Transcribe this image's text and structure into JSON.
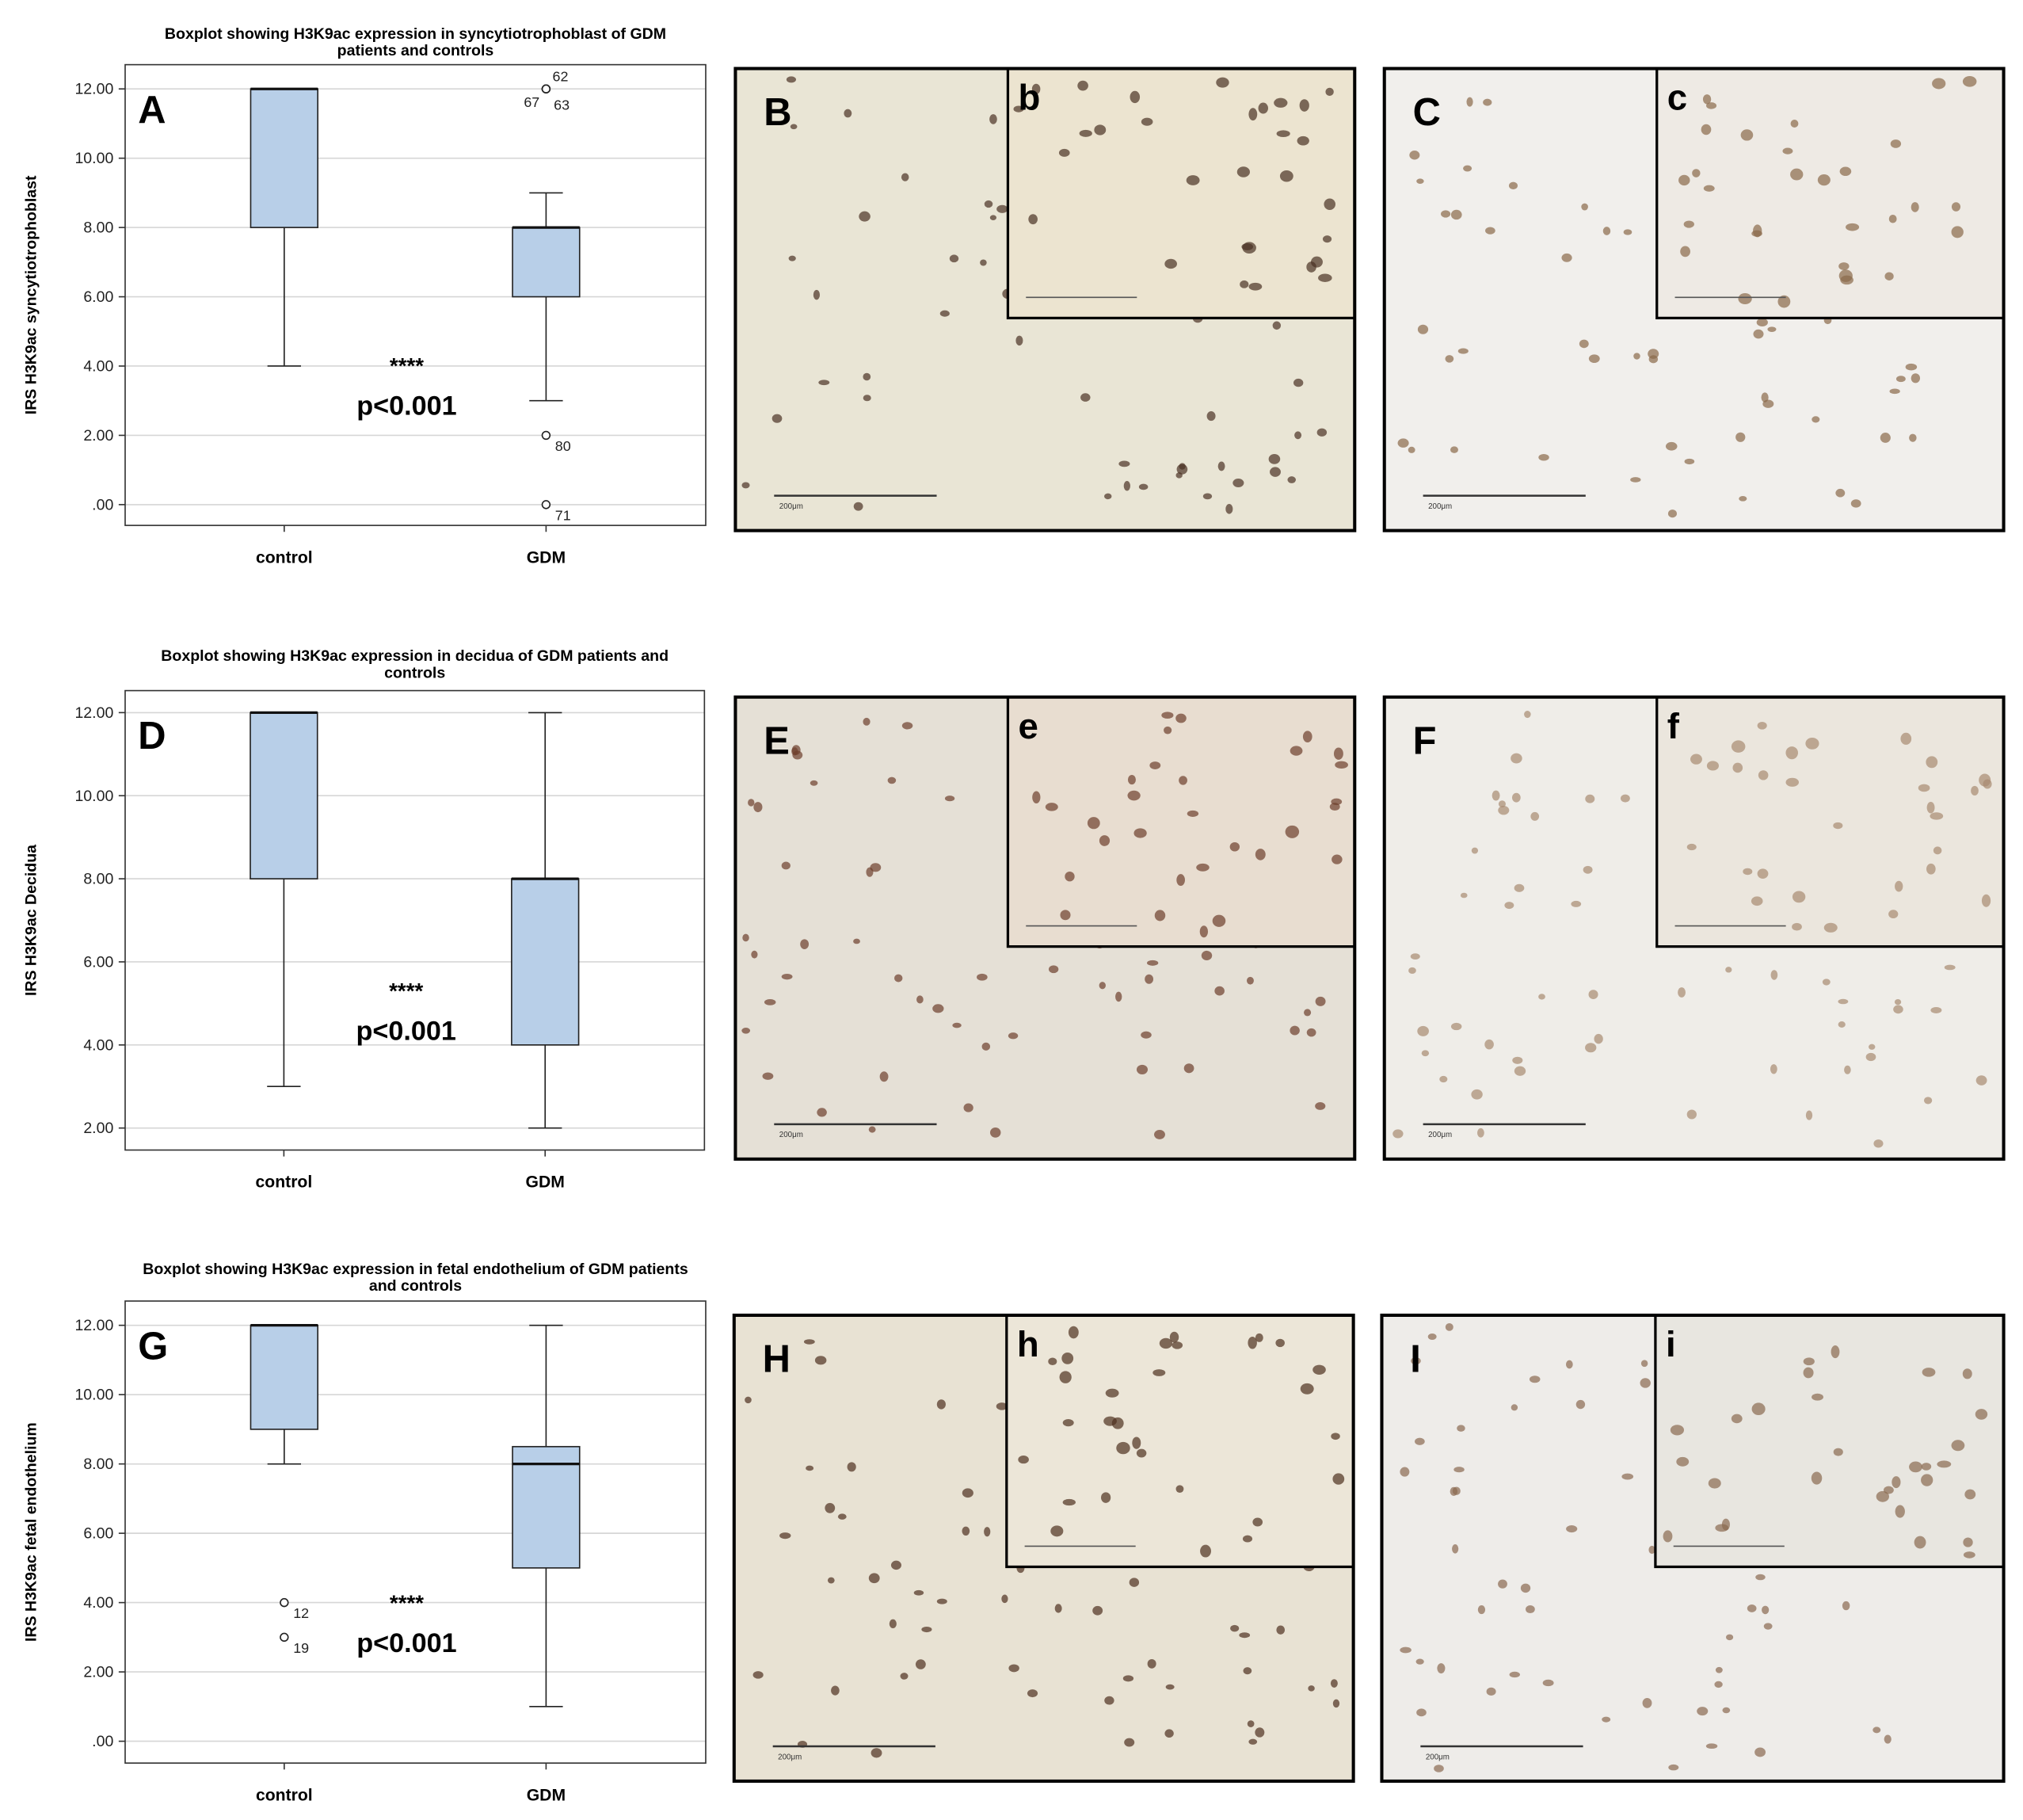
{
  "chart_data": [
    {
      "type": "box",
      "title": "Boxplot showing H3K9ac expression in syncytiotrophoblast of GDM patients and controls",
      "panel_label": "A",
      "y_label": "IRS H3K9ac syncytiotrophoblast",
      "categories": [
        "control",
        "GDM"
      ],
      "color": "#b8cfe8",
      "boxes": [
        {
          "min": 4,
          "q1": 8,
          "median": 12,
          "q3": 12,
          "max": 12,
          "outliers": []
        },
        {
          "min": 3,
          "q1": 6,
          "median": 8,
          "q3": 8,
          "max": 9,
          "outliers": [
            {
              "value": 12,
              "label": "62"
            },
            {
              "value": 12,
              "label": "67"
            },
            {
              "value": 12,
              "label": "63"
            },
            {
              "value": 2,
              "label": "80"
            },
            {
              "value": 0,
              "label": "71"
            }
          ]
        }
      ],
      "ylim": [
        -0.6,
        12.7
      ],
      "yticks": [
        {
          "value": 0,
          "label": ".00"
        },
        {
          "value": 2,
          "label": "2.00"
        },
        {
          "value": 4,
          "label": "4.00"
        },
        {
          "value": 6,
          "label": "6.00"
        },
        {
          "value": 8,
          "label": "8.00"
        },
        {
          "value": 10,
          "label": "10.00"
        },
        {
          "value": 12,
          "label": "12.00"
        }
      ],
      "grid": true,
      "annotations": [
        "****",
        "p<0.001"
      ]
    },
    {
      "type": "box",
      "title": "Boxplot showing H3K9ac expression in decidua of GDM patients and controls",
      "panel_label": "D",
      "y_label": "IRS H3K9ac Decidua",
      "categories": [
        "control",
        "GDM"
      ],
      "color": "#b8cfe8",
      "boxes": [
        {
          "min": 3,
          "q1": 8,
          "median": 12,
          "q3": 12,
          "max": 12,
          "outliers": []
        },
        {
          "min": 2,
          "q1": 4,
          "median": 8,
          "q3": 8,
          "max": 12,
          "outliers": []
        }
      ],
      "ylim": [
        1.47,
        12.53
      ],
      "yticks": [
        {
          "value": 2,
          "label": "2.00"
        },
        {
          "value": 4,
          "label": "4.00"
        },
        {
          "value": 6,
          "label": "6.00"
        },
        {
          "value": 8,
          "label": "8.00"
        },
        {
          "value": 10,
          "label": "10.00"
        },
        {
          "value": 12,
          "label": "12.00"
        }
      ],
      "grid": true,
      "annotations": [
        "****",
        "p<0.001"
      ]
    },
    {
      "type": "box",
      "title": "Boxplot showing H3K9ac expression in fetal endothelium of GDM patients and controls",
      "panel_label": "G",
      "y_label": "IRS H3K9ac fetal endothelium",
      "categories": [
        "control",
        "GDM"
      ],
      "color": "#b8cfe8",
      "boxes": [
        {
          "min": 8,
          "q1": 9,
          "median": 12,
          "q3": 12,
          "max": 12,
          "outliers": [
            {
              "value": 4,
              "label": "12"
            },
            {
              "value": 3,
              "label": "19"
            }
          ]
        },
        {
          "min": 1,
          "q1": 5,
          "median": 8,
          "q3": 8.5,
          "max": 12,
          "outliers": []
        }
      ],
      "ylim": [
        -0.63,
        12.7
      ],
      "yticks": [
        {
          "value": 0,
          "label": ".00"
        },
        {
          "value": 2,
          "label": "2.00"
        },
        {
          "value": 4,
          "label": "4.00"
        },
        {
          "value": 6,
          "label": "6.00"
        },
        {
          "value": 8,
          "label": "8.00"
        },
        {
          "value": 10,
          "label": "10.00"
        },
        {
          "value": 12,
          "label": "12.00"
        }
      ],
      "grid": true,
      "annotations": [
        "****",
        "p<0.001"
      ]
    }
  ],
  "scale_bar_label": "200μm",
  "panels": [
    {
      "label": "B",
      "inset_label": "b"
    },
    {
      "label": "C",
      "inset_label": "c"
    },
    {
      "label": "E",
      "inset_label": "e"
    },
    {
      "label": "F",
      "inset_label": "f"
    },
    {
      "label": "H",
      "inset_label": "h"
    },
    {
      "label": "I",
      "inset_label": "i"
    }
  ]
}
